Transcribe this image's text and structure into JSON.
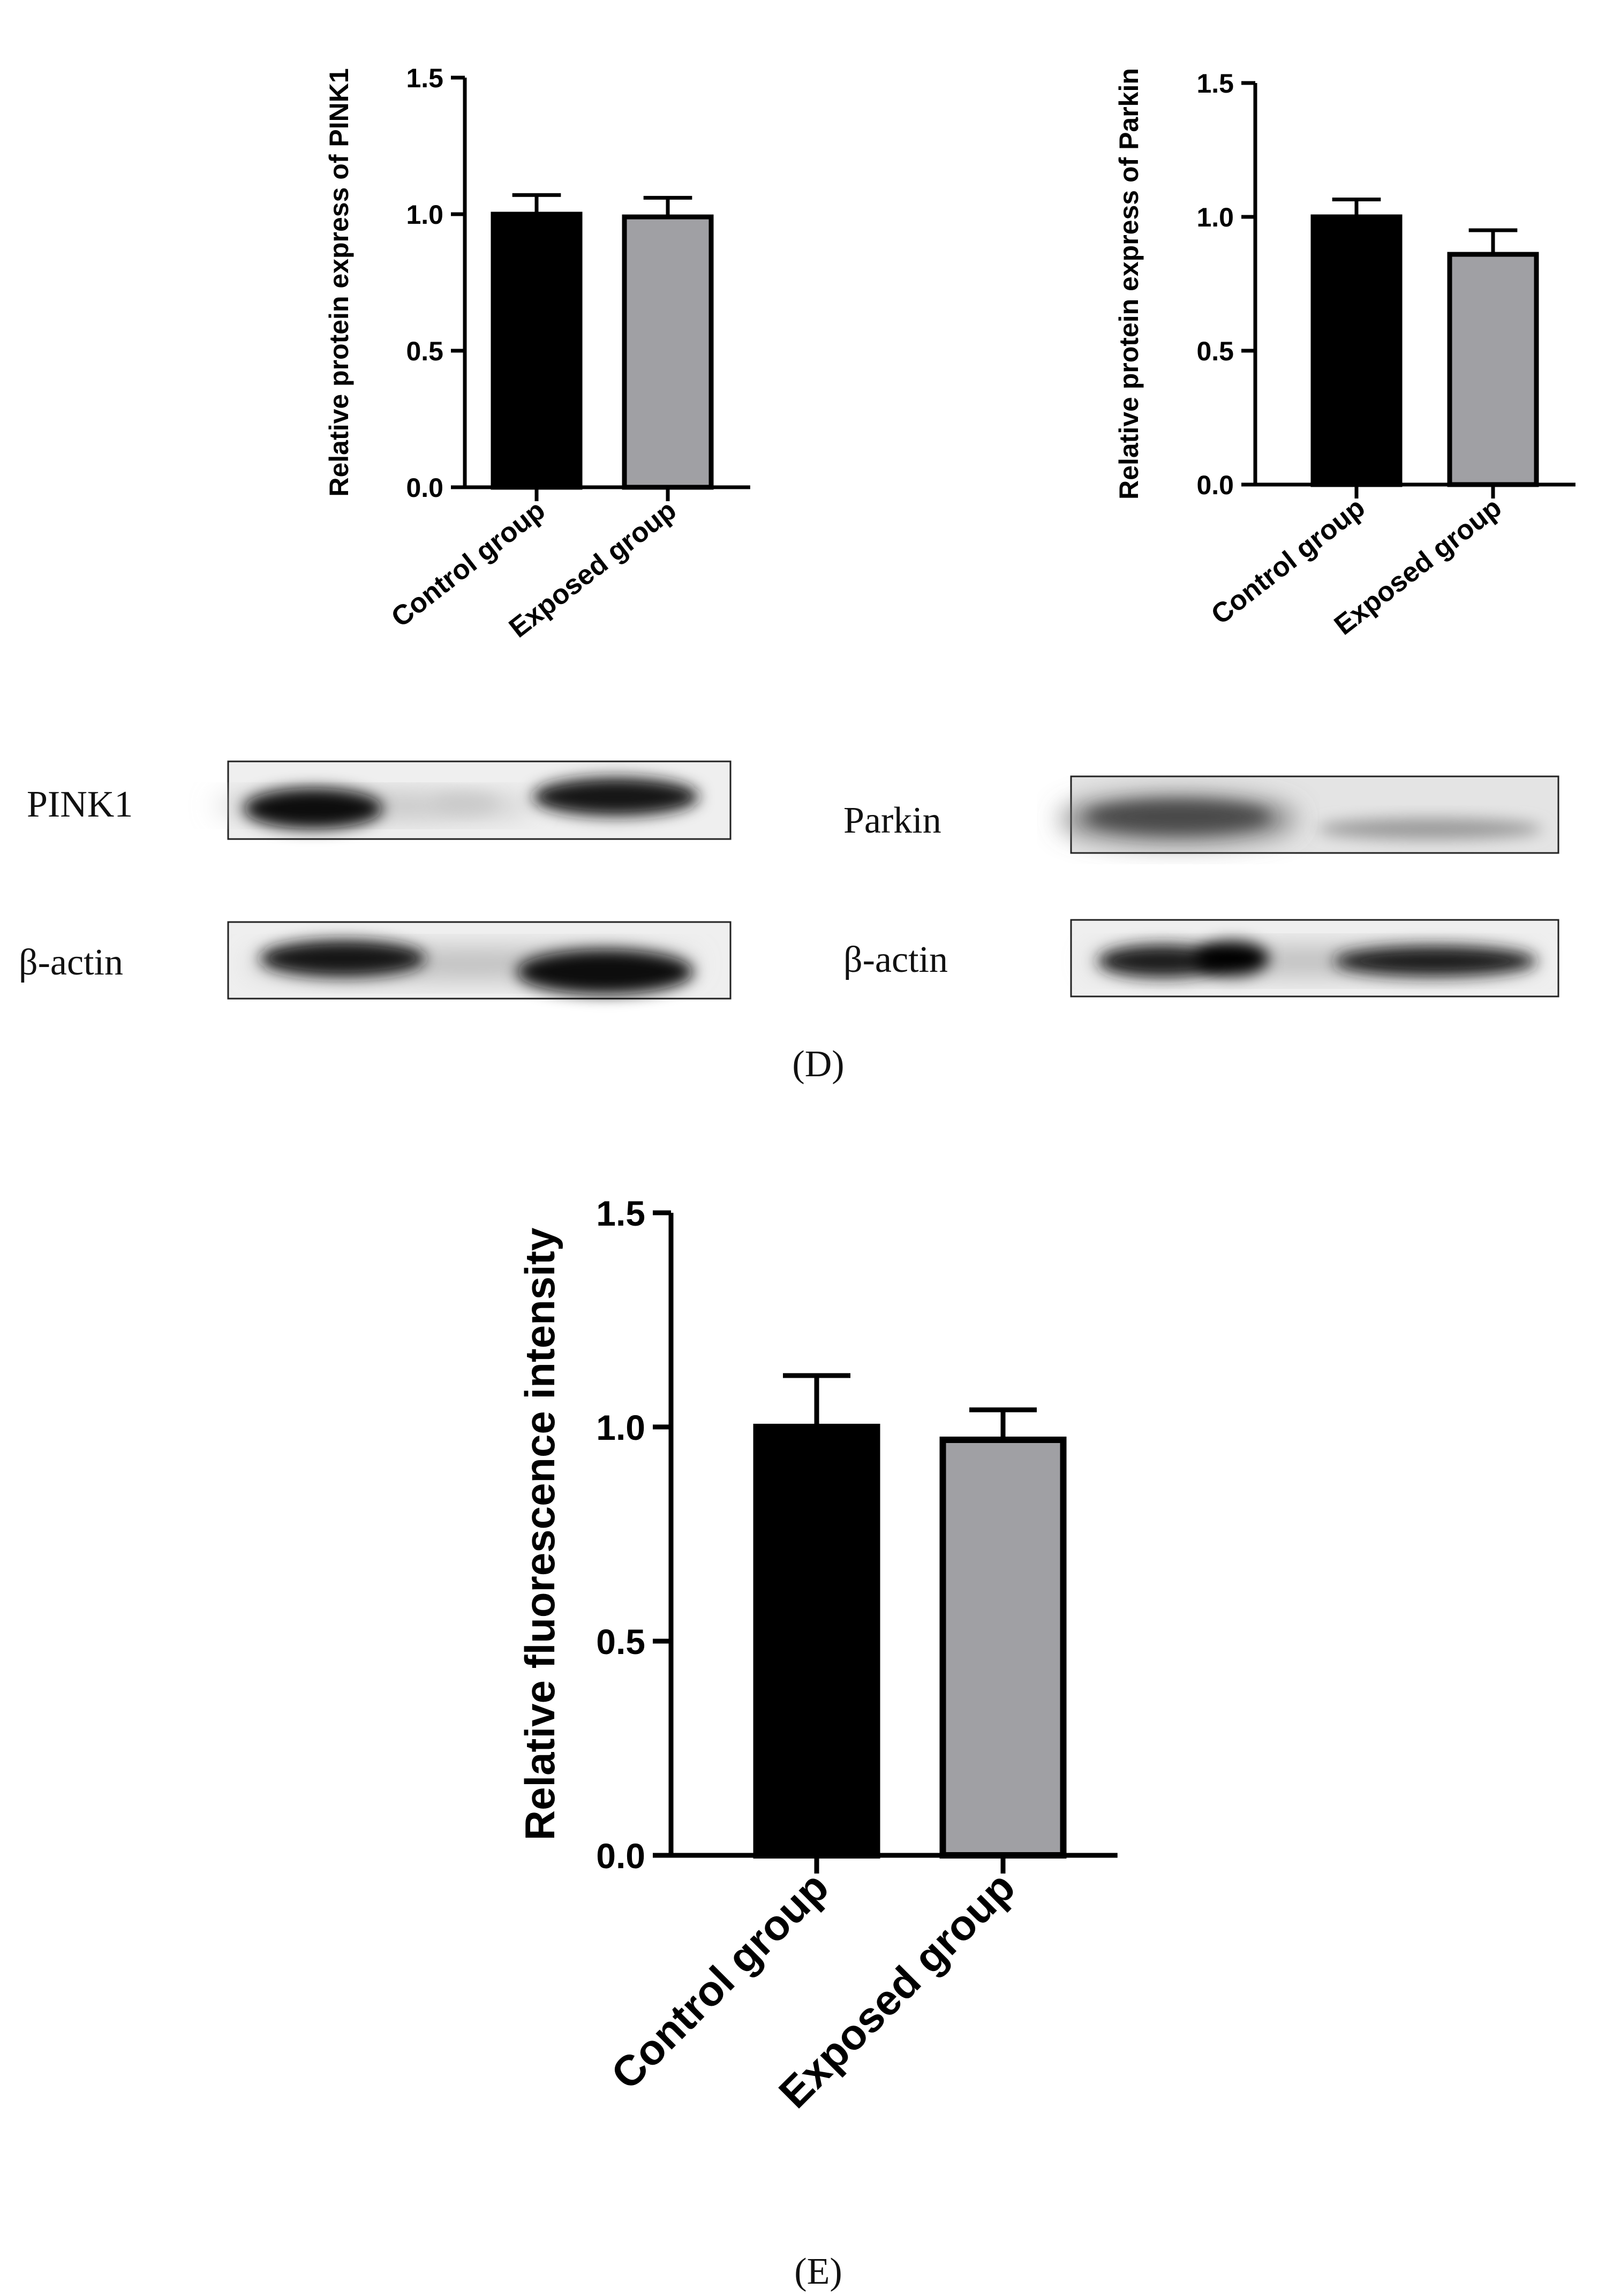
{
  "chart_data": [
    {
      "type": "bar",
      "id": "pink1",
      "categories": [
        "Control group",
        "Exposed group"
      ],
      "series": [
        {
          "values": [
            1.0,
            0.99
          ],
          "errors": [
            0.07,
            0.07
          ]
        }
      ],
      "colors": [
        "#000000",
        "#a0a0a4"
      ],
      "ylabel": "Relative protein express of PINK1",
      "ylim": [
        0,
        1.5
      ],
      "yticks": [
        "0.0",
        "0.5",
        "1.0",
        "1.5"
      ],
      "grid": false
    },
    {
      "type": "bar",
      "id": "parkin",
      "categories": [
        "Control group",
        "Exposed group"
      ],
      "series": [
        {
          "values": [
            1.0,
            0.86
          ],
          "errors": [
            0.065,
            0.09
          ]
        }
      ],
      "colors": [
        "#000000",
        "#a0a0a4"
      ],
      "ylabel": "Relative protein express of Parkin",
      "ylim": [
        0,
        1.5
      ],
      "yticks": [
        "0.0",
        "0.5",
        "1.0",
        "1.5"
      ],
      "grid": false
    },
    {
      "type": "bar",
      "id": "fluor",
      "categories": [
        "Control group",
        "Exposed group"
      ],
      "series": [
        {
          "values": [
            1.0,
            0.97
          ],
          "errors": [
            0.12,
            0.07
          ]
        }
      ],
      "colors": [
        "#000000",
        "#a0a0a4"
      ],
      "ylabel": "Relative fluorescence intensity",
      "ylim": [
        0,
        1.5
      ],
      "yticks": [
        "0.0",
        "0.5",
        "1.0",
        "1.5"
      ],
      "grid": false
    }
  ],
  "blots": {
    "pink1_label": "PINK1",
    "parkin_label": "Parkin",
    "actin_label_left": "β-actin",
    "actin_label_right": "β-actin"
  },
  "panel_labels": {
    "d": "(D)",
    "e": "(E)"
  }
}
